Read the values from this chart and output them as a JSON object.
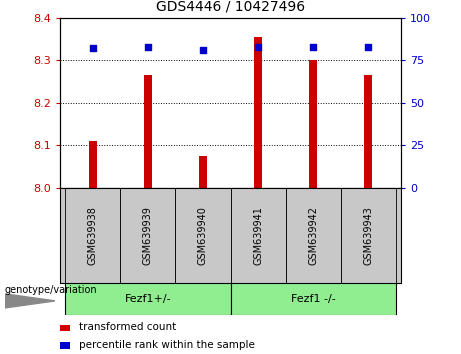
{
  "title": "GDS4446 / 10427496",
  "categories": [
    "GSM639938",
    "GSM639939",
    "GSM639940",
    "GSM639941",
    "GSM639942",
    "GSM639943"
  ],
  "bar_values": [
    8.11,
    8.265,
    8.075,
    8.355,
    8.3,
    8.265
  ],
  "percentile_values": [
    82,
    83,
    81,
    83,
    83,
    83
  ],
  "bar_color": "#cc0000",
  "dot_color": "#0000cc",
  "ylim_left": [
    8.0,
    8.4
  ],
  "ylim_right": [
    0,
    100
  ],
  "yticks_left": [
    8.0,
    8.1,
    8.2,
    8.3,
    8.4
  ],
  "yticks_right": [
    0,
    25,
    50,
    75,
    100
  ],
  "grid_values": [
    8.1,
    8.2,
    8.3
  ],
  "group1_label": "Fezf1+/-",
  "group2_label": "Fezf1 -/-",
  "group_label_text": "genotype/variation",
  "legend_bar_label": "transformed count",
  "legend_dot_label": "percentile rank within the sample",
  "group_color": "#90ee90",
  "bg_color": "#c8c8c8",
  "plot_bg": "#ffffff",
  "left_tick_color": "#cc0000",
  "right_tick_color": "#0000cc",
  "bar_width": 0.15
}
